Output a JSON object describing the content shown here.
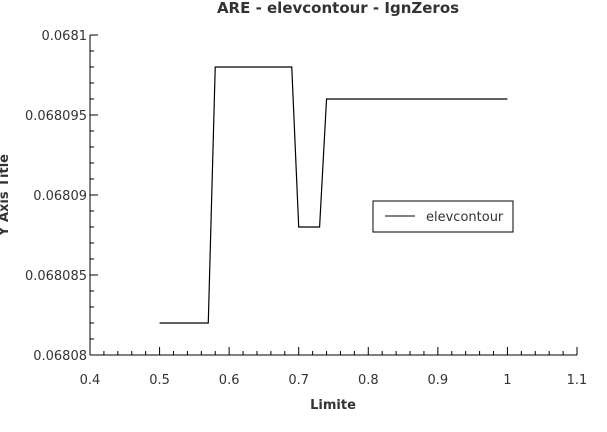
{
  "chart_data": {
    "type": "line",
    "title": "ARE - elevcontour - IgnZeros",
    "xlabel": "Limite",
    "ylabel": "Y Axis Title",
    "xlim": [
      0.4,
      1.1
    ],
    "ylim": [
      0.06808,
      0.0681
    ],
    "x_ticks": [
      0.4,
      0.5,
      0.6,
      0.7,
      0.8,
      0.9,
      1.0,
      1.1
    ],
    "x_tick_labels": [
      "0.4",
      "0.5",
      "0.6",
      "0.7",
      "0.8",
      "0.9",
      "1",
      "1.1"
    ],
    "y_ticks": [
      0.06808,
      0.068085,
      0.06809,
      0.068095,
      0.0681
    ],
    "y_tick_labels": [
      "0.06808",
      "0.068085",
      "0.06809",
      "0.068095",
      "0.0681"
    ],
    "grid": false,
    "legend_position": "right",
    "series": [
      {
        "name": "elevcontour",
        "color": "#000000",
        "points": [
          [
            0.5,
            0.068082
          ],
          [
            0.57,
            0.068082
          ],
          [
            0.58,
            0.068098
          ],
          [
            0.69,
            0.068098
          ],
          [
            0.7,
            0.068088
          ],
          [
            0.73,
            0.068088
          ],
          [
            0.74,
            0.068096
          ],
          [
            1.0,
            0.068096
          ]
        ]
      }
    ]
  }
}
